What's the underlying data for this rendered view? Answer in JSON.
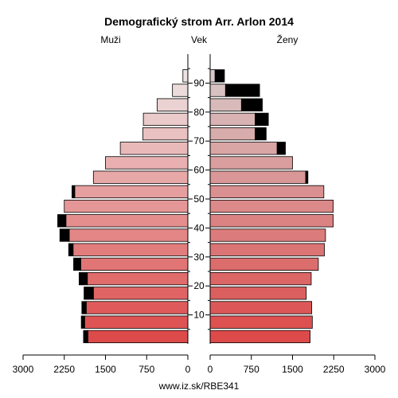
{
  "chart_data": {
    "type": "bar",
    "title": "Demografický strom Arr. Arlon 2014",
    "left_label": "Muži",
    "center_label": "Vek",
    "right_label": "Ženy",
    "footer": "www.iz.sk/RBE341",
    "age_groups": [
      "0-4",
      "5-9",
      "10-14",
      "15-19",
      "20-24",
      "25-29",
      "30-34",
      "35-39",
      "40-44",
      "45-49",
      "50-54",
      "55-59",
      "60-64",
      "65-69",
      "70-74",
      "75-79",
      "80-84",
      "85-89",
      "90+"
    ],
    "age_ticks": [
      "10",
      "20",
      "30",
      "40",
      "50",
      "60",
      "70",
      "80",
      "90"
    ],
    "xlim": [
      0,
      3000
    ],
    "x_ticks_left": [
      "3000",
      "2250",
      "1500",
      "750",
      "0"
    ],
    "x_ticks_right": [
      "0",
      "750",
      "1500",
      "2250",
      "3000"
    ],
    "series": [
      {
        "name": "Muži",
        "values": [
          1820,
          1880,
          1850,
          1720,
          1830,
          1950,
          2090,
          2160,
          2220,
          2250,
          2060,
          1720,
          1500,
          1230,
          820,
          810,
          560,
          280,
          90
        ],
        "excess": [
          80,
          60,
          80,
          170,
          150,
          130,
          80,
          170,
          150,
          0,
          50,
          0,
          0,
          0,
          0,
          0,
          0,
          0,
          0
        ]
      },
      {
        "name": "Ženy",
        "values": [
          1820,
          1860,
          1850,
          1750,
          1840,
          1970,
          2080,
          2100,
          2240,
          2240,
          2070,
          1740,
          1500,
          1220,
          820,
          820,
          570,
          280,
          90
        ],
        "excess": [
          0,
          0,
          0,
          0,
          0,
          0,
          0,
          0,
          0,
          0,
          0,
          40,
          0,
          150,
          200,
          240,
          380,
          620,
          170
        ]
      }
    ],
    "colors": {
      "muzi_low": "#dd4a4a",
      "muzi_high": "#ede3e3",
      "zeny_low": "#dd4a4a",
      "zeny_high": "#d8c8c8",
      "excess": "#000000"
    }
  }
}
